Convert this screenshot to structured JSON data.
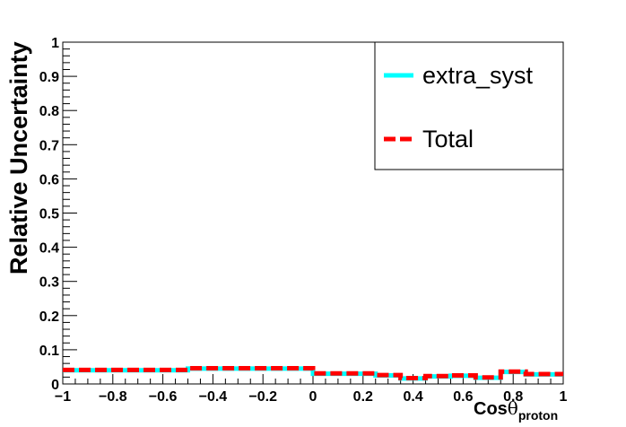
{
  "chart_data": {
    "type": "line",
    "title": "",
    "xlabel_main": "Cos",
    "xlabel_symbol": "θ",
    "xlabel_sub": "proton",
    "ylabel": "Relative Uncertainty",
    "xlim": [
      -1,
      1
    ],
    "ylim": [
      0,
      1
    ],
    "x_ticks": [
      "−1",
      "−0.8",
      "−0.6",
      "−0.4",
      "−0.2",
      "0",
      "0.2",
      "0.4",
      "0.6",
      "0.8",
      "1"
    ],
    "y_ticks": [
      "0",
      "0.1",
      "0.2",
      "0.3",
      "0.4",
      "0.5",
      "0.6",
      "0.7",
      "0.8",
      "0.9",
      "1"
    ],
    "bin_edges": [
      -1,
      -0.5,
      0,
      0.25,
      0.35,
      0.45,
      0.55,
      0.65,
      0.75,
      0.85,
      1
    ],
    "series": [
      {
        "name": "extra_syst",
        "color": "#00ffff",
        "style": "solid",
        "values": [
          0.04,
          0.045,
          0.03,
          0.025,
          0.016,
          0.022,
          0.024,
          0.018,
          0.035,
          0.028
        ]
      },
      {
        "name": "Total",
        "color": "#ff0000",
        "style": "dashed",
        "values": [
          0.041,
          0.046,
          0.031,
          0.026,
          0.017,
          0.023,
          0.025,
          0.019,
          0.036,
          0.029
        ]
      }
    ],
    "legend_position": "top-right",
    "grid": false
  }
}
